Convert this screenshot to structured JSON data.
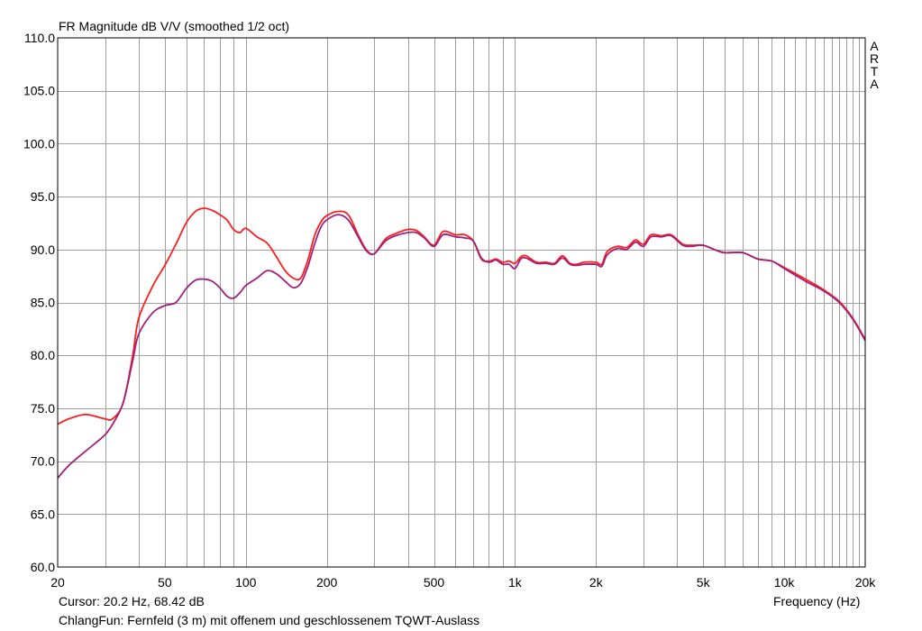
{
  "title": "FR Magnitude dB V/V (smoothed 1/2 oct)",
  "cursor_text": "Cursor: 20.2 Hz, 68.42 dB",
  "comment_text": "ChlangFun: Fernfeld (3 m) mit offenem und geschlossenem TQWT-Auslass",
  "brand_letters": [
    "A",
    "R",
    "T",
    "A"
  ],
  "colors": {
    "grid": "#a0a0a0",
    "frame": "#000000",
    "open_series": "#ff1c1c",
    "closed_series": "#a0207a"
  },
  "chart_data": {
    "type": "line",
    "title": "FR Magnitude dB V/V (smoothed 1/2 oct)",
    "xlabel": "Frequency (Hz)",
    "ylabel": "",
    "x_scale": "log",
    "xlim": [
      20,
      20000
    ],
    "ylim": [
      60,
      110
    ],
    "grid": true,
    "x_ticks": [
      20,
      50,
      100,
      200,
      500,
      1000,
      2000,
      5000,
      10000,
      20000
    ],
    "x_tick_labels": [
      "20",
      "50",
      "100",
      "200",
      "500",
      "1k",
      "2k",
      "5k",
      "10k",
      "20k"
    ],
    "y_ticks": [
      60,
      65,
      70,
      75,
      80,
      85,
      90,
      95,
      100,
      105,
      110
    ],
    "y_tick_labels": [
      "60.0",
      "65.0",
      "70.0",
      "75.0",
      "80.0",
      "85.0",
      "90.0",
      "95.0",
      "100.0",
      "105.0",
      "110.0"
    ],
    "series": [
      {
        "color": "#ff1c1c",
        "x": [
          20,
          22,
          25,
          27,
          30,
          32,
          35,
          38,
          40,
          45,
          50,
          55,
          60,
          65,
          70,
          75,
          80,
          85,
          90,
          95,
          100,
          110,
          120,
          130,
          140,
          150,
          160,
          170,
          180,
          190,
          200,
          220,
          240,
          260,
          280,
          300,
          330,
          360,
          400,
          430,
          460,
          500,
          540,
          600,
          650,
          700,
          750,
          800,
          850,
          900,
          950,
          1000,
          1050,
          1100,
          1200,
          1300,
          1400,
          1500,
          1600,
          1700,
          1800,
          2000,
          2100,
          2200,
          2400,
          2600,
          2800,
          3000,
          3200,
          3500,
          3800,
          4200,
          4500,
          5000,
          5500,
          6000,
          7000,
          8000,
          9000,
          10000,
          12000,
          14000,
          16000,
          18000,
          20000
        ],
        "y": [
          73.5,
          74.0,
          74.4,
          74.3,
          74.0,
          74.0,
          75.5,
          80.0,
          83.5,
          86.5,
          88.5,
          90.5,
          92.5,
          93.6,
          93.9,
          93.7,
          93.3,
          92.8,
          91.9,
          91.6,
          92.0,
          91.2,
          90.6,
          89.3,
          88.0,
          87.3,
          87.3,
          89.0,
          91.3,
          92.6,
          93.2,
          93.6,
          93.3,
          91.5,
          90.0,
          89.6,
          91.0,
          91.5,
          91.9,
          91.8,
          91.2,
          90.4,
          91.7,
          91.4,
          91.4,
          90.8,
          89.1,
          88.9,
          89.1,
          88.8,
          88.9,
          88.7,
          89.3,
          89.4,
          88.8,
          88.8,
          88.7,
          89.4,
          88.7,
          88.6,
          88.8,
          88.8,
          88.6,
          89.8,
          90.3,
          90.2,
          90.9,
          90.5,
          91.4,
          91.3,
          91.4,
          90.5,
          90.4,
          90.4,
          90.0,
          89.7,
          89.7,
          89.1,
          88.9,
          88.3,
          87.2,
          86.2,
          85.1,
          83.5,
          81.5
        ]
      },
      {
        "color": "#a0207a",
        "x": [
          20,
          22,
          25,
          27,
          30,
          32,
          35,
          38,
          40,
          45,
          50,
          55,
          60,
          65,
          70,
          75,
          80,
          85,
          90,
          95,
          100,
          110,
          120,
          130,
          140,
          150,
          160,
          170,
          180,
          190,
          200,
          220,
          240,
          260,
          280,
          300,
          330,
          360,
          400,
          430,
          460,
          500,
          540,
          600,
          650,
          700,
          750,
          800,
          850,
          900,
          950,
          1000,
          1050,
          1100,
          1200,
          1300,
          1400,
          1500,
          1600,
          1700,
          1800,
          2000,
          2100,
          2200,
          2400,
          2600,
          2800,
          3000,
          3200,
          3500,
          3800,
          4200,
          4500,
          5000,
          5500,
          6000,
          7000,
          8000,
          9000,
          10000,
          12000,
          14000,
          16000,
          18000,
          20000
        ],
        "y": [
          68.4,
          69.6,
          70.8,
          71.5,
          72.5,
          73.5,
          75.5,
          79.5,
          82.0,
          84.0,
          84.7,
          85.0,
          86.3,
          87.1,
          87.2,
          87.0,
          86.4,
          85.6,
          85.4,
          85.9,
          86.6,
          87.3,
          88.0,
          87.7,
          87.0,
          86.4,
          86.8,
          88.4,
          90.5,
          92.1,
          92.8,
          93.3,
          92.8,
          91.3,
          89.9,
          89.6,
          90.8,
          91.3,
          91.6,
          91.6,
          91.1,
          90.3,
          91.4,
          91.2,
          91.1,
          90.8,
          89.2,
          88.8,
          89.0,
          88.6,
          88.6,
          88.2,
          89.1,
          89.2,
          88.7,
          88.7,
          88.6,
          89.2,
          88.6,
          88.5,
          88.6,
          88.6,
          88.4,
          89.5,
          90.1,
          90.0,
          90.7,
          90.3,
          91.2,
          91.2,
          91.3,
          90.4,
          90.3,
          90.4,
          90.0,
          89.7,
          89.7,
          89.1,
          88.9,
          88.2,
          87.0,
          86.1,
          85.0,
          83.4,
          81.4
        ]
      }
    ]
  }
}
